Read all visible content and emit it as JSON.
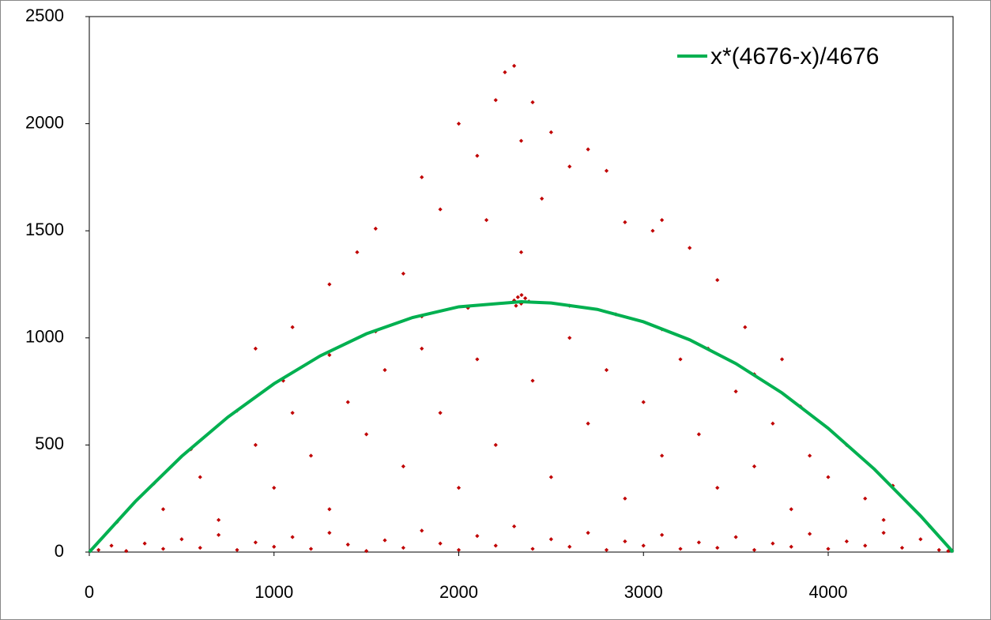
{
  "chart_data": {
    "type": "scatter",
    "xlim": [
      0,
      4676
    ],
    "xticks": [
      0,
      1000,
      2000,
      3000,
      4000
    ],
    "ylim": [
      0,
      2500
    ],
    "yticks": [
      0,
      500,
      1000,
      1500,
      2000,
      2500
    ],
    "grid": false,
    "legend": "top-right",
    "series": [
      {
        "color": "#c00000",
        "x": [
          50,
          120,
          200,
          300,
          400,
          500,
          600,
          700,
          800,
          900,
          1000,
          1100,
          1200,
          1300,
          1400,
          1500,
          1600,
          1700,
          1800,
          1900,
          2000,
          2100,
          2200,
          2300,
          2400,
          2500,
          2600,
          2700,
          2800,
          2900,
          3000,
          3100,
          3200,
          3300,
          3400,
          3500,
          3600,
          3700,
          3800,
          3900,
          4000,
          4100,
          4200,
          4300,
          4400,
          4500,
          4600,
          4650,
          150,
          350,
          550,
          800,
          1050,
          1300,
          1550,
          1800,
          2050,
          2600,
          2850,
          3100,
          3350,
          3600,
          3850,
          4100,
          4350,
          4550,
          400,
          600,
          700,
          900,
          1000,
          1100,
          1200,
          1300,
          1400,
          1500,
          1600,
          1700,
          1800,
          1900,
          2000,
          2100,
          2200,
          2400,
          2500,
          2600,
          2700,
          2800,
          2900,
          3000,
          3100,
          3200,
          3300,
          3400,
          3500,
          3600,
          3700,
          3800,
          3900,
          4000,
          4200,
          4300,
          900,
          1100,
          1300,
          1450,
          1550,
          1700,
          1800,
          1900,
          2000,
          2100,
          2200,
          2250,
          2300,
          2400,
          2500,
          2600,
          2700,
          2800,
          2900,
          3050,
          3100,
          3250,
          3400,
          3550,
          3750,
          2338,
          2150,
          2450,
          2338,
          2300,
          2320,
          2338,
          2360,
          2380,
          2340,
          2310
        ],
        "values": [
          10,
          30,
          5,
          40,
          15,
          60,
          20,
          80,
          10,
          45,
          25,
          70,
          15,
          90,
          35,
          5,
          55,
          20,
          100,
          40,
          10,
          75,
          30,
          120,
          15,
          60,
          25,
          90,
          10,
          50,
          30,
          80,
          15,
          45,
          20,
          70,
          10,
          40,
          25,
          85,
          15,
          50,
          30,
          90,
          20,
          60,
          10,
          5,
          140,
          320,
          480,
          660,
          800,
          920,
          1030,
          1100,
          1140,
          1150,
          1110,
          1040,
          950,
          830,
          680,
          500,
          310,
          120,
          200,
          350,
          150,
          500,
          300,
          650,
          450,
          200,
          700,
          550,
          850,
          400,
          950,
          650,
          300,
          900,
          500,
          800,
          350,
          1000,
          600,
          850,
          250,
          700,
          450,
          900,
          550,
          300,
          750,
          400,
          600,
          200,
          450,
          350,
          250,
          150,
          950,
          1050,
          1250,
          1400,
          1510,
          1300,
          1750,
          1600,
          2000,
          1850,
          2110,
          2240,
          2270,
          2100,
          1960,
          1800,
          1880,
          1780,
          1540,
          1500,
          1550,
          1420,
          1270,
          1050,
          900,
          1400,
          1550,
          1650,
          1920,
          1175,
          1190,
          1160,
          1185,
          1170,
          1200,
          1150
        ]
      },
      {
        "name": "x*(4676-x)/4676",
        "type": "line",
        "color": "#00b050",
        "x": [
          0,
          250,
          500,
          750,
          1000,
          1250,
          1500,
          1750,
          2000,
          2338,
          2500,
          2750,
          3000,
          3250,
          3500,
          3750,
          4000,
          4250,
          4500,
          4676
        ],
        "values": [
          0,
          237,
          447,
          630,
          786,
          916,
          1019,
          1095,
          1145,
          1169,
          1163,
          1133,
          1075,
          991,
          880,
          743,
          578,
          387,
          169,
          0
        ]
      }
    ]
  }
}
